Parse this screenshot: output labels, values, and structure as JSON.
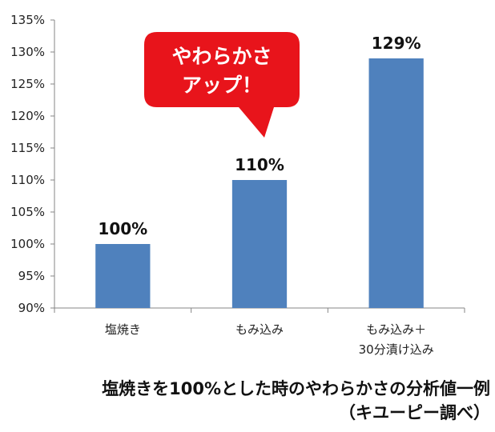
{
  "chart_data": {
    "type": "bar",
    "categories": [
      "塩焼き",
      "もみ込み",
      "もみ込み＋\n30分漬け込み"
    ],
    "values": [
      100,
      110,
      129
    ],
    "data_labels": [
      "100%",
      "110%",
      "129%"
    ],
    "ylim": [
      90,
      135
    ],
    "yticks": [
      "90%",
      "95%",
      "100%",
      "105%",
      "110%",
      "115%",
      "120%",
      "125%",
      "130%",
      "135%"
    ],
    "grid": false,
    "bar_color": "#4f81bd",
    "callout": {
      "lines": [
        "やわらかさ",
        "アップ！"
      ],
      "color": "#e8141b"
    }
  },
  "caption": {
    "line1": "塩焼きを100%とした時のやわらかさの分析値一例",
    "line2": "（キユーピー調べ）"
  }
}
